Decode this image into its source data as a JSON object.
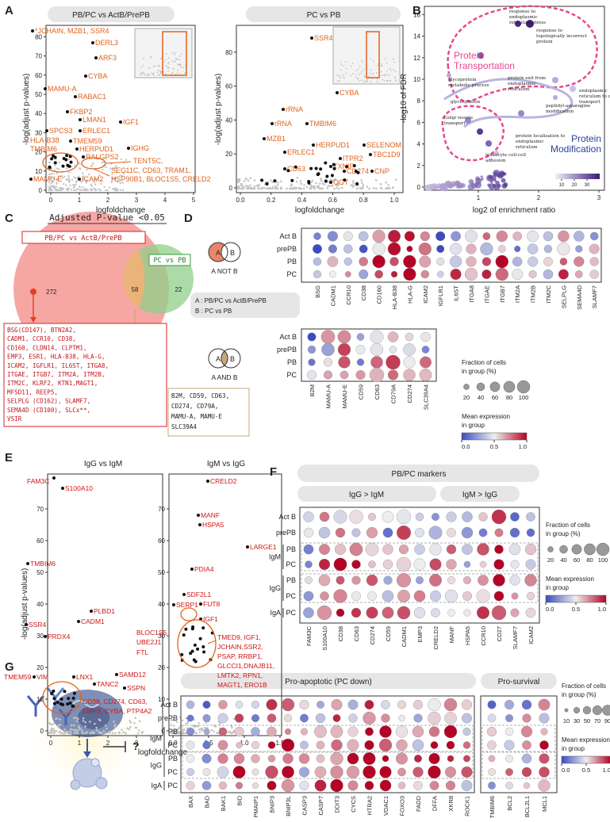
{
  "panel_a": {
    "label": "A",
    "left": {
      "title": "PB/PC vs ActB/PrePB",
      "xlabel": "logfoldchange",
      "ylabel": "-log(adjust p-values)",
      "xticks": [
        0,
        1,
        2,
        3,
        4,
        5
      ],
      "yticks": [
        0,
        10,
        20,
        30,
        40,
        50,
        60,
        70,
        80
      ],
      "genes": [
        "*JCHAIN, MZB1, SSR4",
        "DERL3",
        "ARF3",
        "CYBA",
        "MAMU-A",
        "RABAC1",
        "FKBP2",
        "LMAN1",
        "IGF1",
        "SPCS3",
        "ERLEC1",
        "HLA-B38",
        "TMEM59",
        "TMBIM6",
        "HERPUD1",
        "RALGPS2",
        "IGHG",
        "TENT5C,",
        "SEC11C, CD63, TRAM1,",
        "HSP90B1, BLOC1S5, CRELD2",
        "ICAM2",
        "MAMU-E"
      ]
    },
    "right": {
      "title": "PC vs PB",
      "xlabel": "logfoldchange",
      "ylabel": "-log(adjust p-values)",
      "xticks": [
        {
          "value": 0,
          "label": "0.0"
        },
        0.2,
        0.4,
        0.6,
        0.8,
        {
          "value": 1,
          "label": "1.0"
        }
      ],
      "yticks": [
        0,
        20,
        40,
        60,
        80
      ],
      "genes": [
        "SSR4",
        "CYBA",
        "rRNA",
        "rRNA",
        "TMBIM6",
        "MZB1",
        "HERPUD1",
        "ERLEC1",
        "CD63",
        "TXNIP",
        "ITPR2",
        "CD274",
        "OGT",
        "SELENOM",
        "TBC1D9",
        "CNP"
      ]
    }
  },
  "panel_b": {
    "label": "B",
    "xlabel": "log2 of enrichment ratio",
    "ylabel": "-log10 of FDR",
    "xticks": [
      1,
      2,
      3
    ],
    "yticks": [
      0,
      2,
      4,
      6,
      8,
      10,
      12,
      14,
      16
    ],
    "clusters": [
      [
        "Protein",
        "Transportation"
      ],
      [
        "Protein",
        "Modification"
      ]
    ],
    "terms": [
      [
        "response to",
        "endoplasmic",
        "reticulum stress"
      ],
      [
        "response to",
        "topologically incorrect",
        "protein"
      ],
      [
        "protein exit from",
        "endoplasmic",
        "reticulum"
      ],
      [
        "glycoprotein",
        "metabolic process"
      ],
      [
        "endoplasmic",
        "reticulum to cytosol",
        "transport"
      ],
      [
        "peptidyl-asparagine",
        "modification"
      ],
      [
        "glycosylation"
      ],
      [
        "Golgi vesicle",
        "transport"
      ],
      [
        "protein localization to",
        "endoplasmic",
        "reticulum"
      ],
      [
        "leukocyte cell-cell",
        "adhesion"
      ]
    ],
    "colorbar_ticks": [
      10,
      20,
      30
    ]
  },
  "panel_c": {
    "label": "C",
    "title": "Adjusted P-value <0.05",
    "set_a": "PB/PC vs ActB/PrePB",
    "set_b": "PC vs PB",
    "counts": [
      272,
      58,
      22
    ],
    "a_only_genes": [
      "BSG(CD147), BTN2A2,",
      "CADM1, CCR10, CD38,",
      "CD160, CLDN14, CLPTM1,",
      "EMP3, ESR1, HLA-B38, HLA-G,",
      "ICAM2, IGFLR1, IL6ST, ITGA8,",
      "ITGAE, ITGB7, ITM2A, ITM2B,",
      "ITM2C, KLRF2, KTN1,MAGT1,",
      "MFSD11, REEP5,",
      "SELPLG (CD162), SLAMF7,",
      "SEMA4D (CD100), SLCx**,",
      "VSIR"
    ],
    "shared_genes": [
      "B2M, CD59, CD63,",
      "CD274, CD79A,",
      "MAMU-A, MAMU-E",
      "SLC39A4"
    ]
  },
  "panel_d": {
    "label": "D",
    "venn_a": "A",
    "venn_b": "B",
    "a_not_b": "A NOT B",
    "a_and_b": "A AND B",
    "legend_a": "A : PB/PC vs ActB/PrePB",
    "legend_b": "B : PC vs PB",
    "rows": [
      "Act B",
      "prePB",
      "PB",
      "PC"
    ],
    "genes_top": [
      "BSG",
      "CADM1",
      "CCR10",
      "CD38",
      "CD160",
      "HLA-B38",
      "HLA-G",
      "ICAM2",
      "IGFLR1",
      "IL6ST",
      "ITGA8",
      "ITGAE",
      "ITGB7",
      "ITM2A",
      "ITM2B",
      "ITM2C",
      "SELPLG",
      "SEMA4D",
      "SLAMF7"
    ],
    "genes_bottom": [
      "B2M",
      "MAMU-A",
      "MAMU-E",
      "CD59",
      "CD63",
      "CD79A",
      "CD274",
      "SLC39A4"
    ],
    "size_title": [
      "Fraction of cells",
      "in group (%)"
    ],
    "size_ticks": [
      20,
      40,
      60,
      80,
      100
    ],
    "color_title": [
      "Mean expression",
      "in group"
    ],
    "color_ticks": [
      {
        "value": 0,
        "label": "0.0"
      },
      0.5,
      {
        "value": 1,
        "label": "1.0"
      }
    ]
  },
  "panel_e": {
    "label": "E",
    "xlabel": "logfoldchange",
    "ylabel": "-log(adjust p-values)",
    "left": {
      "title": "IgG vs IgM",
      "xticks": [
        0,
        1,
        2,
        3
      ],
      "yticks": [
        0,
        10,
        20,
        30,
        40,
        50,
        60,
        70
      ],
      "genes": [
        "FAM3C",
        "S100A10",
        "TMBIM6",
        "PLBD1",
        "SSR4",
        "CADM1",
        "PRDX4",
        "TMEM59",
        "VIM",
        "LNX1",
        "SAMD12",
        "TANC2",
        "SSPN",
        "CD38, CD274, CD63,",
        "EMP3, CYBA, PTP4A2"
      ]
    },
    "right": {
      "title": "IgM vs IgG",
      "xticks": [
        {
          "value": 0,
          "label": "0.0"
        },
        0.5,
        {
          "value": 1,
          "label": "1.0"
        },
        1.5
      ],
      "yticks": [
        0,
        10,
        20,
        30,
        40,
        50,
        60,
        70
      ],
      "genes": [
        "CRELD2",
        "MANF",
        "HSPA5",
        "LARGE1",
        "PDIA4",
        "SDF2L1",
        "SERP1",
        "FUT8",
        "IGF1",
        "BLOC1S5",
        "UBE2J1",
        "FTL",
        "TMED9, IGF1,",
        "JCHAIN,SSR2,",
        "PSAP, RRBP1,",
        "GLCCI1,DNAJB11,",
        "LMTK2, RPN1,",
        "MAGT1, ERO1B"
      ]
    }
  },
  "panel_f": {
    "label": "F",
    "title": "PB/PC markers",
    "groups": [
      "IgG > IgM",
      "IgM > IgG"
    ],
    "rows": [
      "Act B",
      "prePB",
      "PB",
      "PC",
      "PB",
      "PC",
      "PC"
    ],
    "row_groups": [
      "IgM",
      "IgG",
      "IgA"
    ],
    "genes": [
      "FAM3C",
      "S100A10",
      "CD38",
      "CD63",
      "CD274",
      "CD59",
      "CADM1",
      "EMP3",
      "CRELD2",
      "MANF",
      "HSPA5",
      "CCR10",
      "CD27",
      "SLAMF7",
      "ICAM2"
    ],
    "size_title": [
      "Fraction of cells",
      "in group (%)"
    ],
    "size_ticks": [
      20,
      40,
      60,
      80,
      100
    ],
    "color_title": [
      "Mean expression",
      "in group"
    ],
    "color_ticks": [
      {
        "value": 0,
        "label": "0.0"
      },
      0.5,
      {
        "value": 1,
        "label": "1.0"
      }
    ]
  },
  "panel_g": {
    "label": "G",
    "question": "?",
    "headers": [
      "Pro-apoptotic (PC down)",
      "Pro-survival"
    ],
    "rows": [
      "Act B",
      "prePB",
      "PB",
      "PC",
      "PB",
      "PC",
      "PC"
    ],
    "row_groups": [
      "IgM",
      "IgG",
      "IgA"
    ],
    "genes_apoptotic": [
      "BAX",
      "BAD",
      "BAK1",
      "BID",
      "PMAIP1",
      "BNIP3",
      "BNIP3L",
      "CASP3",
      "CASP7",
      "DDIT3",
      "CYCS",
      "HTRA2",
      "VDAC1",
      "FOXO3",
      "FADD",
      "DFFA",
      "XKR8",
      "ROCK1"
    ],
    "genes_survival": [
      "TMBIM6",
      "BCL2",
      "BCL2L1",
      "MCL1"
    ],
    "size_title": [
      "Fraction of cells",
      "in group (%)"
    ],
    "size_ticks": [
      10,
      30,
      50,
      70,
      90
    ],
    "color_title": [
      "Mean expression",
      "in group"
    ],
    "color_ticks": [
      {
        "value": 0,
        "label": "0.0"
      },
      0.5,
      {
        "value": 1,
        "label": "1.0"
      }
    ]
  }
}
